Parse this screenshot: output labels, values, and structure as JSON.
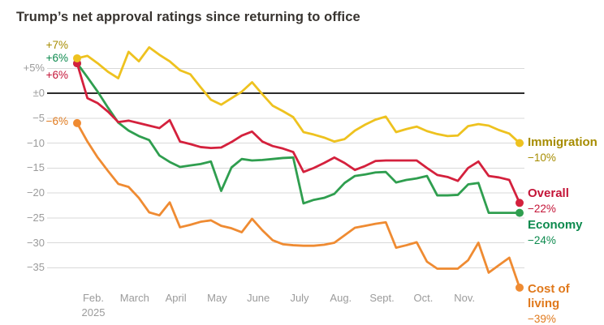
{
  "title": "Trump’s net approval ratings since returning to office",
  "chart_data": {
    "type": "line",
    "title": "Trump’s net approval ratings since returning to office",
    "grid": true,
    "legend_position": "right-edge-labels",
    "x_axis": {
      "months": [
        "Feb.",
        "March",
        "April",
        "May",
        "June",
        "July",
        "Aug.",
        "Sept.",
        "Oct.",
        "Nov."
      ],
      "year_label": "2025",
      "year_under_month": "Feb."
    },
    "y_axis": {
      "unit": "net approval points",
      "range": [
        -40,
        9
      ],
      "ticks": [
        {
          "label": "+5%",
          "value": 5
        },
        {
          "label": "±0",
          "value": 0
        },
        {
          "label": "−5",
          "value": -5
        },
        {
          "label": "−10",
          "value": -10
        },
        {
          "label": "−15",
          "value": -15
        },
        {
          "label": "−20",
          "value": -20
        },
        {
          "label": "−25",
          "value": -25
        },
        {
          "label": "−30",
          "value": -30
        },
        {
          "label": "−35",
          "value": -35
        }
      ]
    },
    "series": [
      {
        "name": "Immigration",
        "color": "#eec21f",
        "label_color": "#a68c00",
        "start_label": "+7%",
        "end_label": "−10%",
        "values": [
          7,
          7.5,
          6,
          4.3,
          3,
          8.3,
          6.4,
          9.2,
          7.7,
          6.4,
          4.6,
          3.8,
          1.2,
          -1.3,
          -2.3,
          -1,
          0.3,
          2.2,
          -0.2,
          -2.5,
          -3.6,
          -4.8,
          -7.8,
          -8.3,
          -8.9,
          -9.7,
          -9.2,
          -7.5,
          -6.3,
          -5.3,
          -4.7,
          -7.8,
          -7.2,
          -6.7,
          -7.6,
          -8.2,
          -8.6,
          -8.5,
          -6.6,
          -6.2,
          -6.5,
          -7.4,
          -8.1,
          -10
        ]
      },
      {
        "name": "Overall",
        "color": "#d4213d",
        "label_color": "#c41538",
        "start_label": "+6%",
        "end_label": "−22%",
        "values": [
          6,
          -1,
          -2,
          -3.7,
          -5.8,
          -5.5,
          -6,
          -6.5,
          -7,
          -5.4,
          -9.7,
          -10.2,
          -10.8,
          -11,
          -10.9,
          -9.8,
          -8.5,
          -7.7,
          -9.7,
          -10.6,
          -11.1,
          -11.8,
          -15.8,
          -15,
          -14,
          -12.9,
          -14,
          -15.4,
          -14.6,
          -13.6,
          -13.5,
          -13.5,
          -13.5,
          -13.5,
          -15,
          -16.4,
          -16.8,
          -17.6,
          -15,
          -13.7,
          -16.6,
          -16.9,
          -17.4,
          -22
        ]
      },
      {
        "name": "Economy",
        "color": "#2f9e4f",
        "label_color": "#0d8a4e",
        "start_label": "+6%",
        "end_label": "−24%",
        "values": [
          6,
          3.2,
          0.3,
          -2.9,
          -5.9,
          -7.5,
          -8.6,
          -9.4,
          -12.5,
          -13.8,
          -14.8,
          -14.5,
          -14.2,
          -13.7,
          -19.6,
          -14.9,
          -13.2,
          -13.5,
          -13.4,
          -13.2,
          -13,
          -12.9,
          -22.1,
          -21.4,
          -21,
          -20.2,
          -18,
          -16.6,
          -16.3,
          -15.9,
          -15.8,
          -17.9,
          -17.4,
          -17.1,
          -16.6,
          -20.5,
          -20.5,
          -20.4,
          -18.3,
          -18,
          -24,
          -24,
          -24,
          -24
        ]
      },
      {
        "name": "Cost of living",
        "color": "#ef8b32",
        "label_color": "#e0791c",
        "start_label": "−6%",
        "end_label": "−39%",
        "values": [
          -6,
          -9.7,
          -12.9,
          -15.6,
          -18.2,
          -18.8,
          -21,
          -23.9,
          -24.5,
          -21.9,
          -26.9,
          -26.4,
          -25.8,
          -25.5,
          -26.6,
          -27.1,
          -27.9,
          -25.2,
          -27.5,
          -29.5,
          -30.3,
          -30.5,
          -30.6,
          -30.6,
          -30.4,
          -30,
          -28.5,
          -27,
          -26.6,
          -26.2,
          -25.9,
          -31,
          -30.5,
          -29.9,
          -33.8,
          -35.2,
          -35.2,
          -35.2,
          -33.5,
          -30,
          -36,
          -34.5,
          -33,
          -39
        ]
      }
    ]
  }
}
